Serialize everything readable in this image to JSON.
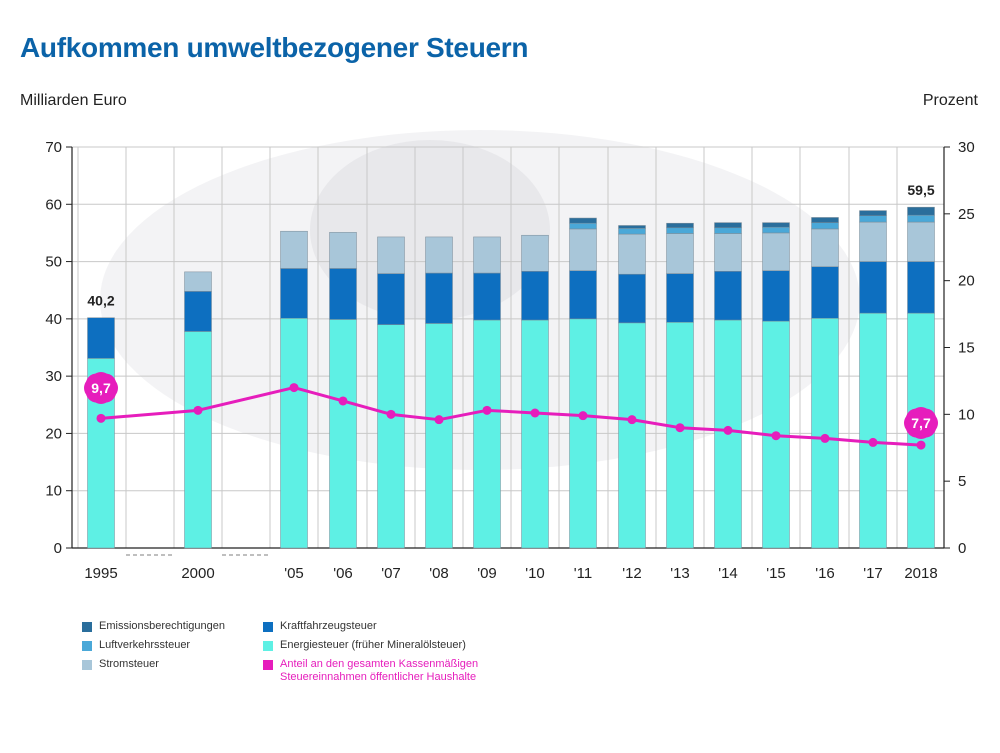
{
  "title": "Aufkommen umweltbezogener Steuern",
  "units": {
    "left": "Milliarden Euro",
    "right": "Prozent"
  },
  "legend": {
    "emission": "Emissionsberechtigungen",
    "luftverkehr": "Luftverkehrssteuer",
    "strom": "Stromsteuer",
    "kfz": "Kraftfahrzeugsteuer",
    "energie": "Energiesteuer (früher Mineralölsteuer)",
    "anteil": "Anteil an den gesamten Kassenmäßigen Steuereinnahmen öffentlicher Haushalte"
  },
  "colors": {
    "energie": "#5ef0e4",
    "kfz": "#0d6fc0",
    "strom": "#a8c6d9",
    "luftverkehr": "#4aa8d8",
    "emission": "#2a6e9c",
    "line": "#e61dbc",
    "title": "#0b63a8"
  },
  "chart_data": {
    "type": "bar",
    "stacked": true,
    "categories": [
      "1995",
      "2000",
      "'05",
      "'06",
      "'07",
      "'08",
      "'09",
      "'10",
      "'11",
      "'12",
      "'13",
      "'14",
      "'15",
      "'16",
      "'17",
      "2018"
    ],
    "series": [
      {
        "name": "Energiesteuer (früher Mineralölsteuer)",
        "key": "energie",
        "values": [
          33.1,
          37.8,
          40.1,
          39.9,
          39.0,
          39.2,
          39.8,
          39.8,
          40.0,
          39.3,
          39.4,
          39.8,
          39.6,
          40.1,
          41.0,
          41.0
        ]
      },
      {
        "name": "Kraftfahrzeugsteuer",
        "key": "kfz",
        "values": [
          7.1,
          7.0,
          8.7,
          8.9,
          8.9,
          8.8,
          8.2,
          8.5,
          8.4,
          8.5,
          8.5,
          8.5,
          8.8,
          9.0,
          9.0,
          9.0
        ]
      },
      {
        "name": "Stromsteuer",
        "key": "strom",
        "values": [
          0,
          3.4,
          6.5,
          6.3,
          6.4,
          6.3,
          6.3,
          6.3,
          7.3,
          7.0,
          7.0,
          6.6,
          6.6,
          6.6,
          6.9,
          6.9
        ]
      },
      {
        "name": "Luftverkehrssteuer",
        "key": "luftverkehr",
        "values": [
          0,
          0,
          0,
          0,
          0,
          0,
          0,
          0,
          1.0,
          1.0,
          1.0,
          1.0,
          1.0,
          1.1,
          1.1,
          1.2
        ]
      },
      {
        "name": "Emissionsberechtigungen",
        "key": "emission",
        "values": [
          0,
          0,
          0,
          0,
          0,
          0,
          0,
          0,
          0.9,
          0.5,
          0.8,
          0.9,
          0.8,
          0.9,
          0.9,
          1.4
        ]
      }
    ],
    "totals_labels": {
      "first": "40,2",
      "last": "59,5"
    },
    "line": {
      "name": "Anteil an den gesamten Kassenmäßigen Steuereinnahmen öffentlicher Haushalte",
      "axis": "right",
      "values": [
        9.7,
        10.3,
        12.0,
        11.0,
        10.0,
        9.6,
        10.3,
        10.1,
        9.9,
        9.6,
        9.0,
        8.8,
        8.4,
        8.2,
        7.9,
        7.7
      ],
      "labels": {
        "first": "9,7",
        "last": "7,7"
      }
    },
    "ylim": [
      0,
      70
    ],
    "yticks": [
      "0",
      "10",
      "20",
      "30",
      "40",
      "50",
      "60",
      "70"
    ],
    "y2lim": [
      0,
      30
    ],
    "y2ticks": [
      "0",
      "5",
      "10",
      "15",
      "20",
      "25",
      "30"
    ],
    "grid": true
  }
}
